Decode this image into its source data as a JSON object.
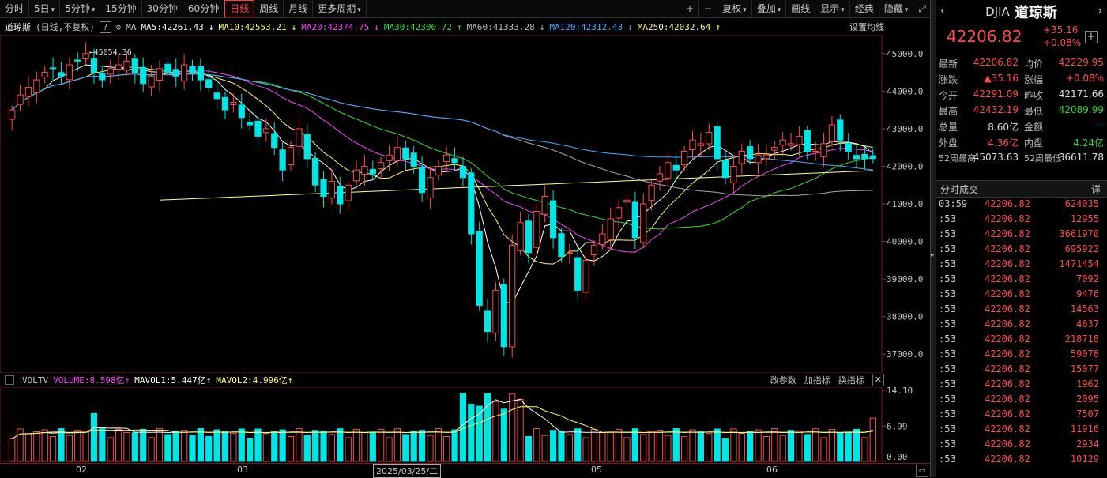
{
  "toolbar": {
    "left": [
      "分时",
      "5日",
      "5分钟",
      "15分钟",
      "30分钟",
      "60分钟",
      "日线",
      "周线",
      "月线",
      "更多周期"
    ],
    "active": "日线",
    "right": [
      "+",
      "−",
      "复权",
      "叠加",
      "画线",
      "显示",
      "经典",
      "隐藏",
      "⤢"
    ]
  },
  "ma_bar": {
    "name": "道琼斯",
    "mode": "(日线,不复权)",
    "q": "?",
    "ma_label": "MA",
    "ma5": "MA5:42261.43",
    "ma10": "MA10:42553.21",
    "ma20": "MA20:42374.75",
    "ma30": "MA30:42300.72",
    "ma60": "MA60:41333.28",
    "ma120": "MA120:42312.43",
    "ma250": "MA250:42032.64",
    "settings": "设置均线"
  },
  "colors": {
    "up": "#ff4a4a",
    "down": "#00e5e5",
    "ma5": "#ffffff",
    "ma10": "#ffff66",
    "ma20": "#ff40ff",
    "ma30": "#33dd33",
    "ma60": "#aaaaaa",
    "ma120": "#44aaff",
    "ma250": "#ffff99"
  },
  "chart_data": {
    "type": "candlestick",
    "ylim": [
      36500,
      45500
    ],
    "y_ticks": [
      "45000.0",
      "44000.0",
      "43000.0",
      "42000.0",
      "41000.0",
      "40000.0",
      "39000.0",
      "38000.0",
      "37000.0"
    ],
    "high_mark": "45054.36",
    "low_mark": "36611.78",
    "x_labels": [
      "02",
      "03",
      "2025/03/25/二",
      "05",
      "06"
    ],
    "close": [
      43500,
      43900,
      44100,
      44300,
      44500,
      44600,
      44400,
      44700,
      44800,
      45000,
      44500,
      44300,
      44600,
      44700,
      44800,
      44500,
      44200,
      44400,
      44600,
      44500,
      44400,
      44700,
      44500,
      44300,
      44100,
      43800,
      43500,
      43700,
      43300,
      43100,
      42800,
      43000,
      42500,
      41900,
      42500,
      43000,
      42200,
      41500,
      41200,
      41600,
      41000,
      41500,
      41900,
      42000,
      41800,
      42100,
      42300,
      42500,
      42200,
      42000,
      41300,
      41700,
      42000,
      42300,
      42100,
      41700,
      40200,
      38300,
      37600,
      38700,
      37200,
      39900,
      40500,
      39700,
      40800,
      41200,
      40100,
      39600,
      39700,
      38700,
      39500,
      39900,
      40200,
      40600,
      40900,
      41100,
      40100,
      41000,
      41500,
      41800,
      42100,
      41900,
      42400,
      42700,
      42600,
      42900,
      42200,
      41700,
      42000,
      42400,
      42200,
      42300,
      42300,
      42500,
      42700,
      42600,
      42800,
      42400,
      42400,
      42600,
      43100,
      42700,
      42400,
      42200,
      42200,
      42206
    ]
  },
  "vol_bar": {
    "label": "VOLTV",
    "volume": "VOLUME:8.598亿",
    "mavol1": "MAVOL1:5.447亿",
    "mavol2": "MAVOL2:4.996亿",
    "ticks": [
      "14.10",
      "6.99",
      "0.00"
    ],
    "buttons": [
      "改参数",
      "加指标",
      "换指标",
      "✕"
    ]
  },
  "side": {
    "code": "DJIA",
    "name": "道琼斯",
    "price": "42206.82",
    "change": "+35.16",
    "pct": "+0.08%",
    "rows": [
      {
        "l1": "最新",
        "v1": "42206.82",
        "l2": "均价",
        "v2": "42229.95"
      },
      {
        "l1": "涨跌",
        "v1": "▲35.16",
        "l2": "涨幅",
        "v2": "+0.08%"
      },
      {
        "l1": "今开",
        "v1": "42291.09",
        "l2": "昨收",
        "v2": "42171.66"
      },
      {
        "l1": "最高",
        "v1": "42432.19",
        "l2": "最低",
        "v2": "42089.99"
      },
      {
        "l1": "总量",
        "v1": "8.60亿",
        "l2": "金额",
        "v2": "—"
      },
      {
        "l1": "外盘",
        "v1": "4.36亿",
        "l2": "内盘",
        "v2": "4.24亿"
      },
      {
        "l1": "52周最高",
        "v1": "45073.63",
        "l2": "52周最低",
        "v2": "36611.78"
      }
    ],
    "ticks_title": "分时成交",
    "ticks_btn": "详",
    "ticks": [
      {
        "t": "03:59",
        "p": "42206.82",
        "v": "624035"
      },
      {
        "t": ":53",
        "p": "42206.82",
        "v": "12955"
      },
      {
        "t": ":53",
        "p": "42206.82",
        "v": "3661970"
      },
      {
        "t": ":53",
        "p": "42206.82",
        "v": "695922"
      },
      {
        "t": ":53",
        "p": "42206.82",
        "v": "1471454"
      },
      {
        "t": ":53",
        "p": "42206.82",
        "v": "7092"
      },
      {
        "t": ":53",
        "p": "42206.82",
        "v": "9476"
      },
      {
        "t": ":53",
        "p": "42206.82",
        "v": "14563"
      },
      {
        "t": ":53",
        "p": "42206.82",
        "v": "4637"
      },
      {
        "t": ":53",
        "p": "42206.82",
        "v": "218718"
      },
      {
        "t": ":53",
        "p": "42206.82",
        "v": "59078"
      },
      {
        "t": ":53",
        "p": "42206.82",
        "v": "15077"
      },
      {
        "t": ":53",
        "p": "42206.82",
        "v": "1962"
      },
      {
        "t": ":53",
        "p": "42206.82",
        "v": "2095"
      },
      {
        "t": ":53",
        "p": "42206.82",
        "v": "7507"
      },
      {
        "t": ":53",
        "p": "42206.82",
        "v": "11916"
      },
      {
        "t": ":53",
        "p": "42206.82",
        "v": "2934"
      },
      {
        "t": ":53",
        "p": "42206.82",
        "v": "10129"
      }
    ]
  }
}
